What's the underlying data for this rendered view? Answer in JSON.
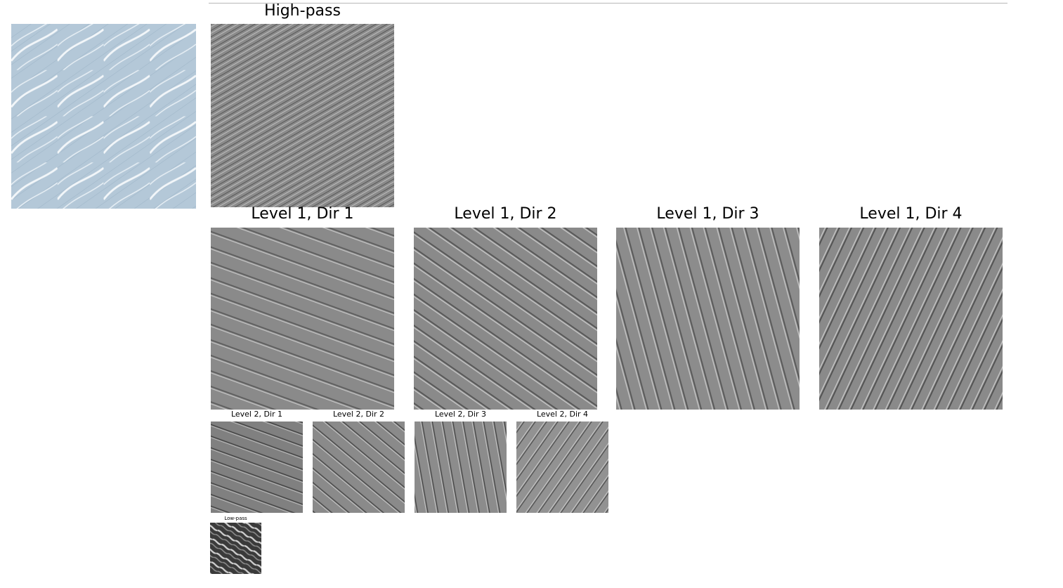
{
  "input": {
    "icon": "leaf-pattern-texture",
    "colors": {
      "background": "#b4c8d8",
      "lines": "#f2f6f9"
    }
  },
  "highpass": {
    "title": "High-pass"
  },
  "level1": [
    {
      "title": "Level 1, Dir 1"
    },
    {
      "title": "Level 1, Dir 2"
    },
    {
      "title": "Level 1, Dir 3"
    },
    {
      "title": "Level 1, Dir 4"
    }
  ],
  "level2": [
    {
      "title": "Level 2, Dir 1"
    },
    {
      "title": "Level 2, Dir 2"
    },
    {
      "title": "Level 2, Dir 3"
    },
    {
      "title": "Level 2, Dir 4"
    }
  ],
  "lowpass": {
    "title": "Low-pass"
  },
  "colors": {
    "subband_gray": "#8a8a8a",
    "lowpass_dark": "#3a3a3a"
  }
}
